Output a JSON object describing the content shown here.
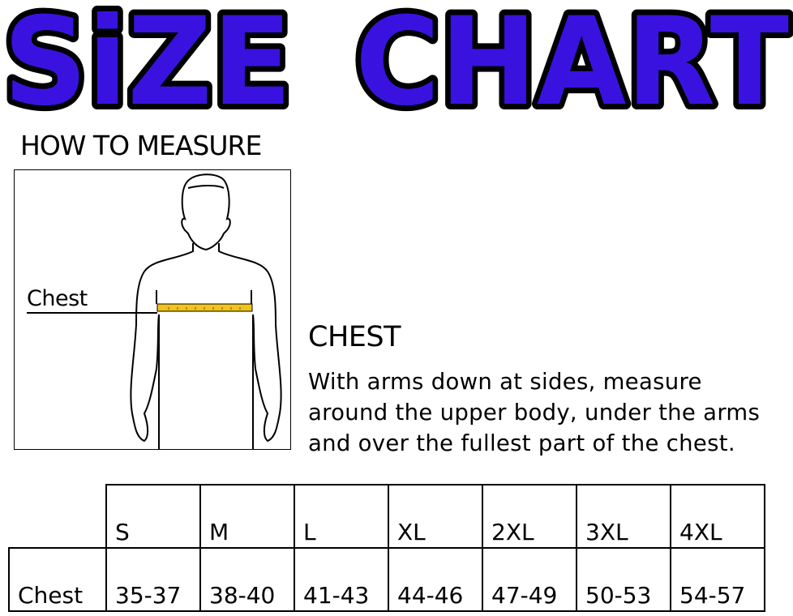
{
  "title": {
    "word1": "SiZE",
    "word2": "CHART",
    "fill_color": "#3a12e0",
    "outline_color": "#000000"
  },
  "how_to_measure": {
    "heading": "HOW TO MEASURE",
    "figure_label": "Chest",
    "tape_color": "#f2c318"
  },
  "section": {
    "title": "CHEST",
    "lines": [
      "With arms down at sides, measure",
      "around the upper body, under the arms",
      "and over the fullest part of the chest."
    ]
  },
  "table": {
    "sizes": [
      "S",
      "M",
      "L",
      "XL",
      "2XL",
      "3XL",
      "4XL"
    ],
    "rows": [
      {
        "label": "Chest",
        "values": [
          "35-37",
          "38-40",
          "41-43",
          "44-46",
          "47-49",
          "50-53",
          "54-57"
        ]
      }
    ]
  }
}
